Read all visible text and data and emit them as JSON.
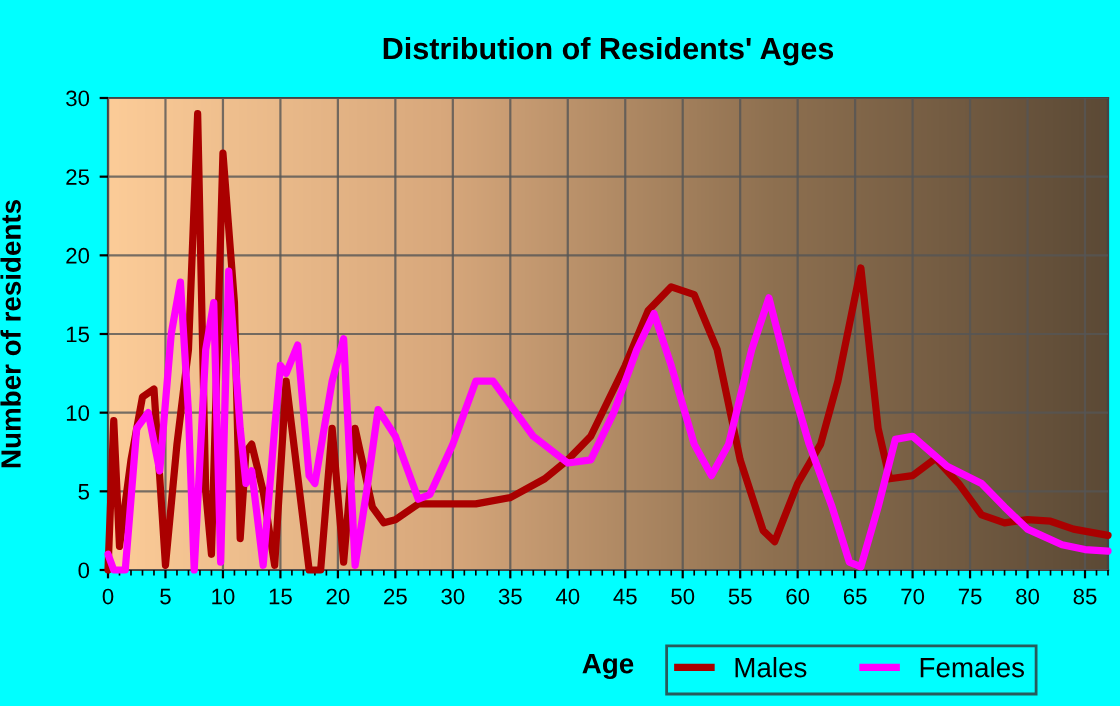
{
  "chart_data": {
    "type": "line",
    "title": "Distribution of Residents' Ages",
    "xlabel": "Age",
    "ylabel": "Number of residents",
    "xlim": [
      0,
      87
    ],
    "xticks": [
      0,
      5,
      10,
      15,
      20,
      25,
      30,
      35,
      40,
      45,
      50,
      55,
      60,
      65,
      70,
      75,
      80,
      85
    ],
    "ylim": [
      0,
      30
    ],
    "yticks": [
      0,
      5,
      10,
      15,
      20,
      25,
      30
    ],
    "grid": true,
    "legend": "bottom right",
    "marker": "none",
    "line_style": "solid",
    "series": [
      {
        "name": "Males",
        "color": "#aa0000",
        "x": [
          0,
          0.5,
          1,
          2,
          3,
          4,
          5,
          6,
          7,
          7.8,
          8.5,
          9,
          10,
          11,
          11.5,
          12,
          12.5,
          13.5,
          14.5,
          15.5,
          16.5,
          17.5,
          18.5,
          19.5,
          20.5,
          21.5,
          23,
          24,
          25,
          27,
          30,
          32,
          35,
          38,
          40,
          42,
          45,
          47,
          49,
          51,
          53,
          55,
          57,
          58,
          60,
          62,
          63.5,
          65.5,
          67,
          68,
          70,
          72,
          74,
          76,
          78,
          80,
          82,
          84,
          87
        ],
        "values": [
          0,
          9.5,
          1.5,
          7,
          11,
          11.5,
          0.3,
          8,
          14,
          29,
          5,
          1,
          26.5,
          17,
          2,
          7.5,
          8,
          5,
          0.3,
          12,
          6,
          0,
          0,
          9,
          0.5,
          9,
          4,
          3,
          3.2,
          4.2,
          4.2,
          4.2,
          4.6,
          5.8,
          7,
          8.5,
          13,
          16.5,
          18,
          17.5,
          14,
          7,
          2.5,
          1.8,
          5.5,
          8,
          12,
          19.2,
          9,
          5.8,
          6,
          7.1,
          5.5,
          3.5,
          3,
          3.2,
          3.1,
          2.6,
          2.2
        ]
      },
      {
        "name": "Females",
        "color": "#ff00ff",
        "x": [
          0,
          0.5,
          1.5,
          2.5,
          3.5,
          4.5,
          5.5,
          6.3,
          7,
          7.5,
          8.5,
          9.2,
          9.8,
          10.5,
          11.5,
          12,
          12.5,
          13.5,
          14.5,
          15,
          15.5,
          16.5,
          17.5,
          18,
          19.5,
          20.5,
          21.5,
          22.5,
          23.5,
          25,
          27,
          28,
          30,
          32,
          33.5,
          35,
          37,
          40,
          42,
          44,
          46,
          47.5,
          49,
          51,
          52.5,
          54,
          56,
          57.5,
          59,
          61,
          63,
          64.5,
          65.5,
          67,
          68.5,
          70,
          73,
          76,
          78,
          80,
          83,
          85,
          87
        ],
        "values": [
          1,
          0,
          0,
          9,
          10,
          6.3,
          15,
          18.3,
          10,
          0,
          14,
          17,
          0.5,
          19,
          9,
          5.5,
          6.3,
          0.3,
          9,
          13,
          12.5,
          14.3,
          6,
          5.5,
          12,
          14.7,
          0.3,
          5,
          10.2,
          8.5,
          4.5,
          4.8,
          8,
          12,
          12,
          10.5,
          8.5,
          6.8,
          7,
          10,
          14,
          16.3,
          13,
          8,
          6,
          8,
          14,
          17.3,
          13,
          8,
          4,
          0.5,
          0.2,
          4,
          8.3,
          8.5,
          6.6,
          5.5,
          4,
          2.6,
          1.6,
          1.3,
          1.2
        ]
      }
    ]
  }
}
